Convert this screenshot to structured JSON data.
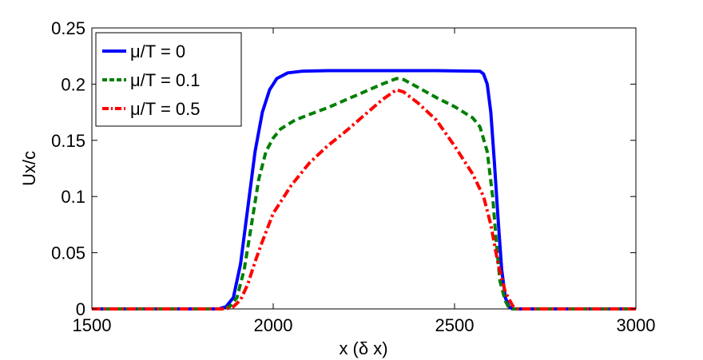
{
  "chart_data": {
    "type": "line",
    "xlabel": "x (δ x)",
    "ylabel": "Ux/c",
    "xlim": [
      1500,
      3000
    ],
    "ylim": [
      0,
      0.25
    ],
    "xticks": [
      "1500",
      "2000",
      "2500",
      "3000"
    ],
    "yticks": [
      "0",
      "0.05",
      "0.1",
      "0.15",
      "0.2",
      "0.25"
    ],
    "grid": false,
    "legend_position": "top-left",
    "series": [
      {
        "name": "μ/T = 0",
        "color": "#0000ff",
        "style": "solid",
        "points": [
          [
            1500,
            0
          ],
          [
            1850,
            0
          ],
          [
            1870,
            0.002
          ],
          [
            1890,
            0.01
          ],
          [
            1910,
            0.04
          ],
          [
            1930,
            0.09
          ],
          [
            1950,
            0.14
          ],
          [
            1970,
            0.175
          ],
          [
            1990,
            0.195
          ],
          [
            2010,
            0.205
          ],
          [
            2040,
            0.21
          ],
          [
            2080,
            0.2115
          ],
          [
            2150,
            0.212
          ],
          [
            2300,
            0.212
          ],
          [
            2450,
            0.212
          ],
          [
            2570,
            0.2115
          ],
          [
            2580,
            0.209
          ],
          [
            2590,
            0.2
          ],
          [
            2600,
            0.175
          ],
          [
            2610,
            0.13
          ],
          [
            2620,
            0.08
          ],
          [
            2630,
            0.035
          ],
          [
            2640,
            0.01
          ],
          [
            2650,
            0.002
          ],
          [
            2660,
            0
          ],
          [
            3000,
            0
          ]
        ]
      },
      {
        "name": "μ/T = 0.1",
        "color": "#007f00",
        "style": "dashed",
        "points": [
          [
            1500,
            0
          ],
          [
            1860,
            0
          ],
          [
            1880,
            0.002
          ],
          [
            1900,
            0.01
          ],
          [
            1920,
            0.035
          ],
          [
            1940,
            0.075
          ],
          [
            1960,
            0.115
          ],
          [
            1980,
            0.14
          ],
          [
            2000,
            0.152
          ],
          [
            2020,
            0.16
          ],
          [
            2060,
            0.168
          ],
          [
            2100,
            0.173
          ],
          [
            2150,
            0.179
          ],
          [
            2200,
            0.186
          ],
          [
            2250,
            0.193
          ],
          [
            2300,
            0.2
          ],
          [
            2340,
            0.205
          ],
          [
            2360,
            0.204
          ],
          [
            2400,
            0.197
          ],
          [
            2450,
            0.188
          ],
          [
            2500,
            0.18
          ],
          [
            2550,
            0.17
          ],
          [
            2570,
            0.162
          ],
          [
            2590,
            0.14
          ],
          [
            2605,
            0.1
          ],
          [
            2615,
            0.06
          ],
          [
            2625,
            0.025
          ],
          [
            2640,
            0.007
          ],
          [
            2650,
            0.001
          ],
          [
            2660,
            0
          ],
          [
            3000,
            0
          ]
        ]
      },
      {
        "name": "μ/T = 0.5",
        "color": "#ff0000",
        "style": "dashdot",
        "points": [
          [
            1500,
            0
          ],
          [
            1870,
            0
          ],
          [
            1890,
            0.002
          ],
          [
            1910,
            0.008
          ],
          [
            1930,
            0.022
          ],
          [
            1950,
            0.042
          ],
          [
            1970,
            0.06
          ],
          [
            2000,
            0.085
          ],
          [
            2050,
            0.11
          ],
          [
            2100,
            0.13
          ],
          [
            2150,
            0.145
          ],
          [
            2200,
            0.158
          ],
          [
            2250,
            0.172
          ],
          [
            2300,
            0.186
          ],
          [
            2340,
            0.195
          ],
          [
            2360,
            0.193
          ],
          [
            2400,
            0.183
          ],
          [
            2450,
            0.168
          ],
          [
            2500,
            0.145
          ],
          [
            2550,
            0.12
          ],
          [
            2580,
            0.1
          ],
          [
            2600,
            0.075
          ],
          [
            2620,
            0.04
          ],
          [
            2640,
            0.015
          ],
          [
            2660,
            0.003
          ],
          [
            2670,
            0
          ],
          [
            3000,
            0
          ]
        ]
      }
    ]
  }
}
